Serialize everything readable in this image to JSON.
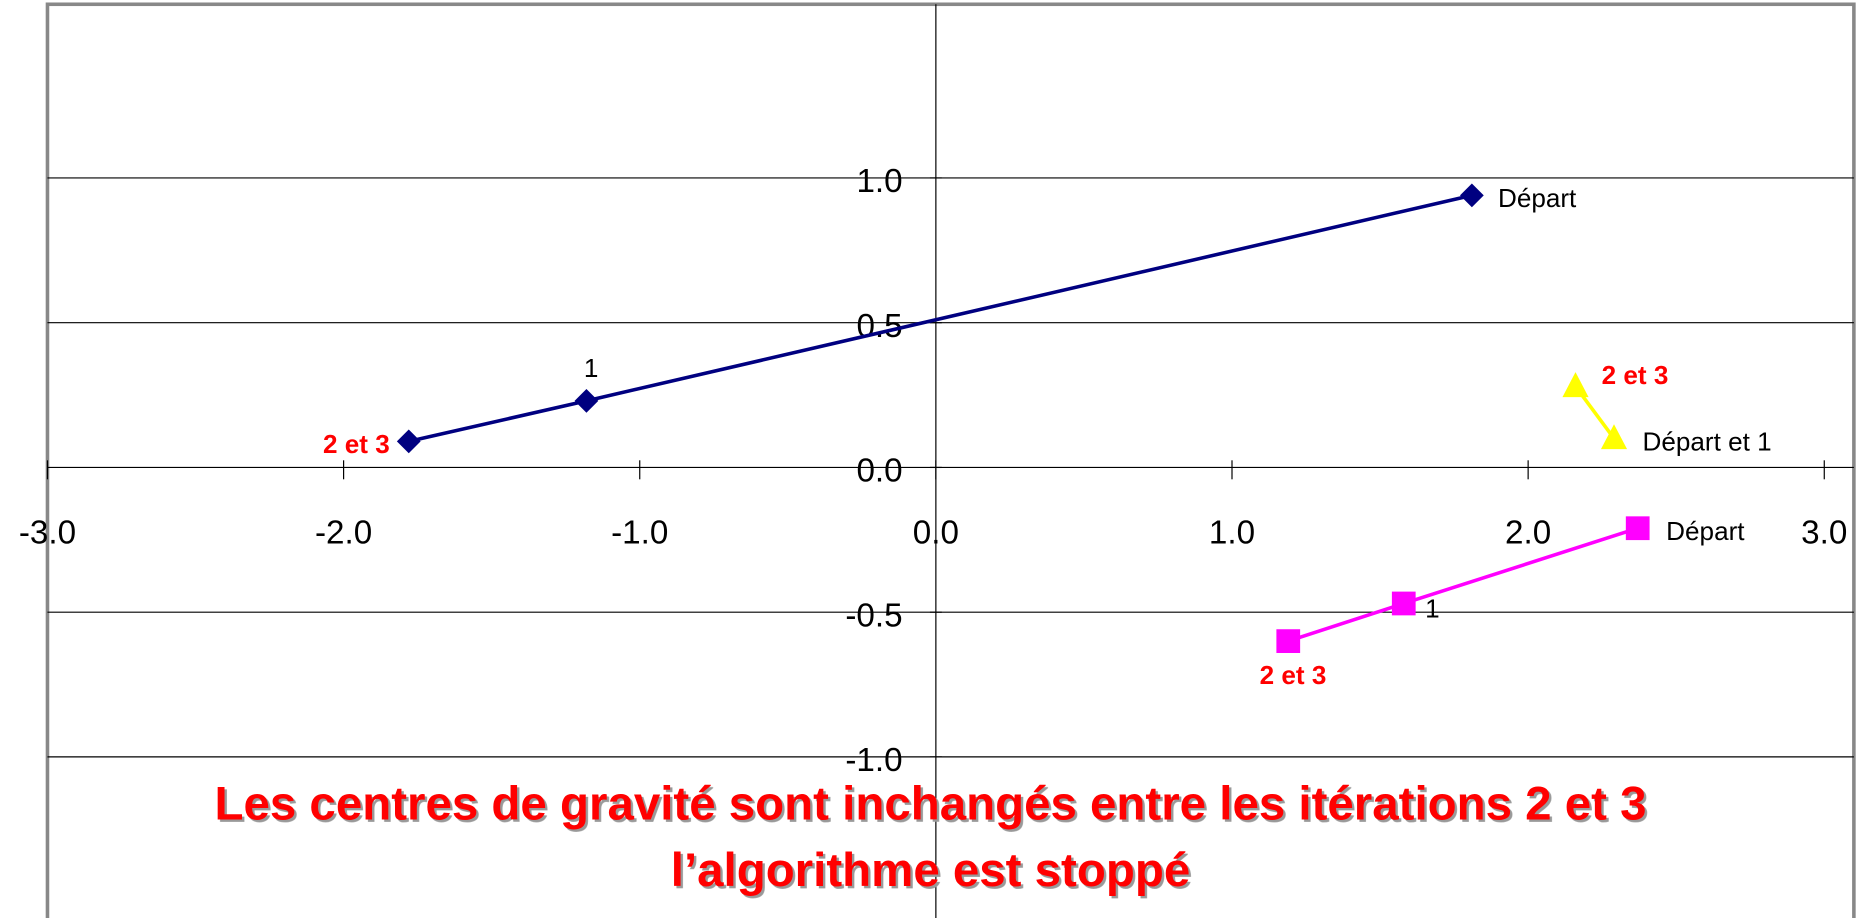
{
  "chart_data": {
    "type": "scatter_line",
    "xlim": [
      -3,
      3.1
    ],
    "ylim": [
      -1.6,
      1.6
    ],
    "xticks": [
      {
        "value": -3,
        "label": "-3.0"
      },
      {
        "value": -2,
        "label": "-2.0"
      },
      {
        "value": -1,
        "label": "-1.0"
      },
      {
        "value": 0,
        "label": "0.0"
      },
      {
        "value": 1,
        "label": "1.0"
      },
      {
        "value": 2,
        "label": "2.0"
      },
      {
        "value": 3,
        "label": "3.0"
      }
    ],
    "yticks": [
      {
        "value": -1,
        "label": "-1.0"
      },
      {
        "value": -0.5,
        "label": "-0.5"
      },
      {
        "value": 0,
        "label": "0.0"
      },
      {
        "value": 0.5,
        "label": "0.5"
      },
      {
        "value": 1,
        "label": "1.0"
      }
    ],
    "grid": true,
    "series": [
      {
        "color": "#000080",
        "marker": "diamond",
        "x": [
          1.81,
          -1.18,
          -1.78
        ],
        "values": [
          0.94,
          0.23,
          0.09
        ],
        "point_labels": [
          "Départ",
          "1",
          "2 et 3"
        ]
      },
      {
        "color": "#ffff00",
        "marker": "triangle",
        "x": [
          2.29,
          2.16
        ],
        "values": [
          0.1,
          0.28
        ],
        "point_labels": [
          "Départ et 1",
          "2 et 3"
        ]
      },
      {
        "color": "#ff00ff",
        "marker": "square",
        "x": [
          2.37,
          1.58,
          1.19
        ],
        "values": [
          -0.21,
          -0.47,
          -0.6
        ],
        "point_labels": [
          "Départ",
          "1",
          "2 et 3"
        ]
      }
    ],
    "annotations": [
      "Les centres de gravité sont inchangés entre les itérations 2 et 3",
      "l’algorithme est stoppé"
    ]
  }
}
